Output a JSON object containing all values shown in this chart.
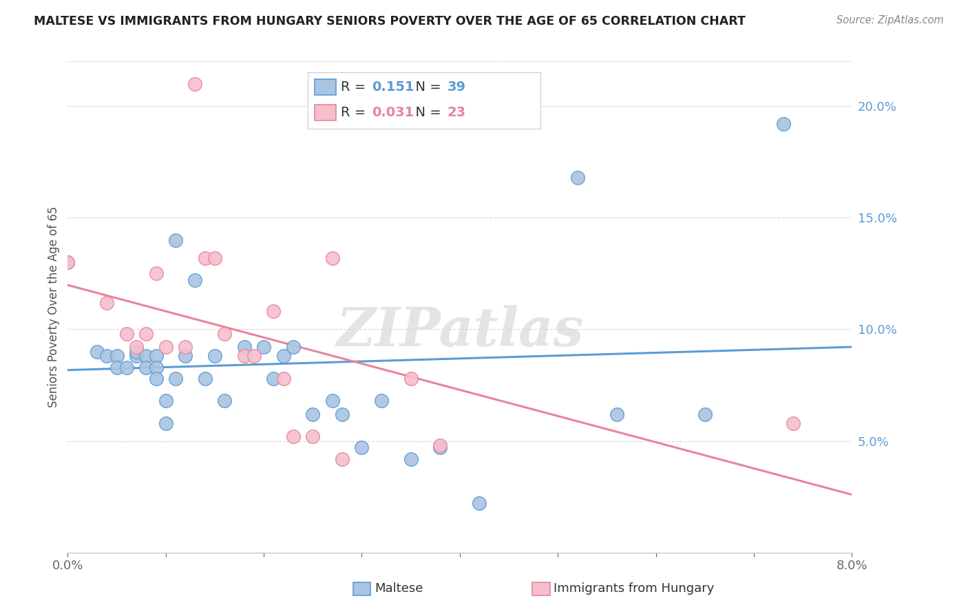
{
  "title": "MALTESE VS IMMIGRANTS FROM HUNGARY SENIORS POVERTY OVER THE AGE OF 65 CORRELATION CHART",
  "source": "Source: ZipAtlas.com",
  "ylabel": "Seniors Poverty Over the Age of 65",
  "xlim": [
    0.0,
    0.08
  ],
  "ylim": [
    0.0,
    0.22
  ],
  "yticks_right": [
    0.05,
    0.1,
    0.15,
    0.2
  ],
  "yticklabels_right": [
    "5.0%",
    "10.0%",
    "15.0%",
    "20.0%"
  ],
  "legend_r_blue": "0.151",
  "legend_n_blue": "39",
  "legend_r_pink": "0.031",
  "legend_n_pink": "23",
  "blue_fill": "#aac4e2",
  "pink_fill": "#f5bfcc",
  "blue_edge": "#5b9bd5",
  "pink_edge": "#e8849a",
  "grid_color": "#d8d8d8",
  "maltese_x": [
    0.0,
    0.003,
    0.004,
    0.005,
    0.005,
    0.006,
    0.007,
    0.007,
    0.008,
    0.008,
    0.009,
    0.009,
    0.009,
    0.01,
    0.01,
    0.011,
    0.011,
    0.012,
    0.013,
    0.014,
    0.015,
    0.016,
    0.018,
    0.02,
    0.021,
    0.022,
    0.023,
    0.025,
    0.027,
    0.028,
    0.03,
    0.032,
    0.035,
    0.038,
    0.042,
    0.052,
    0.056,
    0.065,
    0.073
  ],
  "maltese_y": [
    0.13,
    0.09,
    0.088,
    0.088,
    0.083,
    0.083,
    0.088,
    0.09,
    0.088,
    0.083,
    0.088,
    0.083,
    0.078,
    0.068,
    0.058,
    0.14,
    0.078,
    0.088,
    0.122,
    0.078,
    0.088,
    0.068,
    0.092,
    0.092,
    0.078,
    0.088,
    0.092,
    0.062,
    0.068,
    0.062,
    0.047,
    0.068,
    0.042,
    0.047,
    0.022,
    0.168,
    0.062,
    0.062,
    0.192
  ],
  "hungary_x": [
    0.0,
    0.004,
    0.006,
    0.007,
    0.008,
    0.009,
    0.01,
    0.012,
    0.013,
    0.014,
    0.015,
    0.016,
    0.018,
    0.019,
    0.021,
    0.022,
    0.023,
    0.025,
    0.027,
    0.028,
    0.035,
    0.038,
    0.074
  ],
  "hungary_y": [
    0.13,
    0.112,
    0.098,
    0.092,
    0.098,
    0.125,
    0.092,
    0.092,
    0.21,
    0.132,
    0.132,
    0.098,
    0.088,
    0.088,
    0.108,
    0.078,
    0.052,
    0.052,
    0.132,
    0.042,
    0.078,
    0.048,
    0.058
  ]
}
